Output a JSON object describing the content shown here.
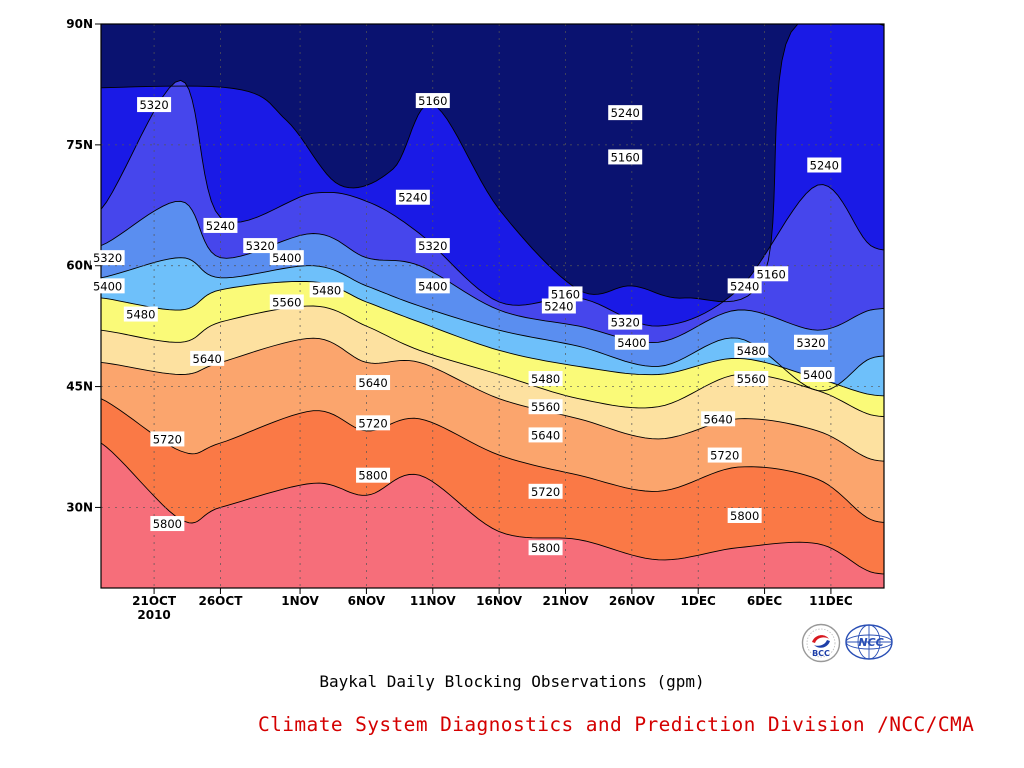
{
  "chart_data": {
    "type": "contour",
    "xlabel": "",
    "ylabel": "",
    "x_ticks": [
      "21OCT",
      "26OCT",
      "1NOV",
      "6NOV",
      "11NOV",
      "16NOV",
      "21NOV",
      "26NOV",
      "1DEC",
      "6DEC",
      "11DEC"
    ],
    "x_tick_year": "2010",
    "x_tick_dates": [
      "2010-10-21",
      "2010-10-26",
      "2010-11-01",
      "2010-11-06",
      "2010-11-11",
      "2010-11-16",
      "2010-11-21",
      "2010-11-26",
      "2010-12-01",
      "2010-12-06",
      "2010-12-11"
    ],
    "xlim": [
      "2010-10-17",
      "2010-12-15"
    ],
    "y_ticks": [
      "30N",
      "45N",
      "60N",
      "75N",
      "90N"
    ],
    "y_values": [
      30,
      45,
      60,
      75,
      90
    ],
    "ylim": [
      20,
      90
    ],
    "grid": true,
    "levels": [
      5160,
      5240,
      5320,
      5400,
      5480,
      5560,
      5640,
      5720,
      5800
    ],
    "fill_colors": [
      "#0a1270",
      "#1a1ae6",
      "#4646ec",
      "#5a8ef0",
      "#6ec0fa",
      "#fafa78",
      "#fde1a0",
      "#fba56d",
      "#fa7946",
      "#f66e7a"
    ],
    "contour_lines": [
      {
        "level": 5800,
        "days": [
          0,
          6,
          9,
          16,
          20,
          24,
          30,
          36,
          42,
          48,
          54,
          58
        ],
        "lat": [
          38,
          28.5,
          30,
          33,
          31.5,
          34,
          27,
          26,
          23.5,
          25,
          25.5,
          22
        ]
      },
      {
        "level": 5720,
        "days": [
          0,
          6,
          9,
          16,
          20,
          24,
          30,
          36,
          42,
          48,
          54,
          58
        ],
        "lat": [
          43.5,
          37,
          38,
          42,
          39.5,
          41,
          36.5,
          34,
          32,
          35,
          33.5,
          28.5
        ]
      },
      {
        "level": 5640,
        "days": [
          0,
          6,
          9,
          16,
          20,
          24,
          30,
          36,
          42,
          48,
          54,
          58
        ],
        "lat": [
          48,
          46.5,
          48,
          51,
          48,
          48,
          43.5,
          41,
          38.5,
          41,
          39.5,
          36
        ]
      },
      {
        "level": 5560,
        "days": [
          0,
          6,
          9,
          16,
          20,
          24,
          30,
          36,
          42,
          48,
          54,
          58
        ],
        "lat": [
          52,
          50.5,
          53,
          55,
          52.5,
          49.5,
          46.5,
          43.5,
          42.5,
          46.5,
          44.5,
          41.5
        ]
      },
      {
        "level": 5480,
        "days": [
          0,
          6,
          9,
          16,
          20,
          24,
          30,
          36,
          42,
          48,
          54,
          58
        ],
        "lat": [
          56,
          54.5,
          57,
          58,
          55.5,
          53,
          49.5,
          47.5,
          46.5,
          48.5,
          46,
          44
        ]
      },
      {
        "level": 5400,
        "days": [
          0,
          6,
          9,
          16,
          20,
          24,
          30,
          36,
          42,
          48,
          54,
          58
        ],
        "lat": [
          58.5,
          61,
          58.5,
          60,
          57.5,
          55,
          52,
          50,
          47.5,
          51,
          44.5,
          48.5
        ]
      },
      {
        "level": 5320,
        "days": [
          0,
          6,
          9,
          16,
          20,
          24,
          30,
          36,
          42,
          48,
          54,
          58
        ],
        "lat": [
          62.5,
          68,
          61,
          64,
          61,
          60,
          54.5,
          52.5,
          50.5,
          54.5,
          52,
          54.5
        ]
      },
      {
        "level": 5240,
        "days": [
          0,
          6,
          9,
          16,
          20,
          24,
          30,
          36,
          42,
          48,
          54,
          58
        ],
        "lat": [
          67,
          83,
          66,
          69,
          68,
          64,
          55.5,
          56,
          52.5,
          57,
          70,
          62.5
        ]
      },
      {
        "level": 5160,
        "days": [
          10,
          14,
          18,
          22,
          25,
          30,
          36,
          40,
          44,
          50,
          52
        ],
        "lat": [
          82,
          78,
          70,
          72,
          80,
          67,
          57,
          57.5,
          56,
          59,
          89
        ]
      }
    ],
    "labels": [
      {
        "text": "5320",
        "day": 4,
        "lat": 80
      },
      {
        "text": "5240",
        "day": 9,
        "lat": 65
      },
      {
        "text": "5320",
        "day": 12,
        "lat": 62.5
      },
      {
        "text": "5400",
        "day": 14,
        "lat": 61
      },
      {
        "text": "5320",
        "day": 0.5,
        "lat": 61
      },
      {
        "text": "5400",
        "day": 0.5,
        "lat": 57.5
      },
      {
        "text": "5480",
        "day": 3,
        "lat": 54
      },
      {
        "text": "5560",
        "day": 14,
        "lat": 55.5
      },
      {
        "text": "5480",
        "day": 17,
        "lat": 57
      },
      {
        "text": "5640",
        "day": 8,
        "lat": 48.5
      },
      {
        "text": "5160",
        "day": 25,
        "lat": 80.5
      },
      {
        "text": "5240",
        "day": 23.5,
        "lat": 68.5
      },
      {
        "text": "5320",
        "day": 25,
        "lat": 62.5
      },
      {
        "text": "5400",
        "day": 25,
        "lat": 57.5
      },
      {
        "text": "5640",
        "day": 20.5,
        "lat": 45.5
      },
      {
        "text": "5720",
        "day": 20.5,
        "lat": 40.5
      },
      {
        "text": "5800",
        "day": 20.5,
        "lat": 34
      },
      {
        "text": "5720",
        "day": 5,
        "lat": 38.5
      },
      {
        "text": "5800",
        "day": 5,
        "lat": 28
      },
      {
        "text": "5160",
        "day": 35,
        "lat": 56.5
      },
      {
        "text": "5240",
        "day": 34.5,
        "lat": 55
      },
      {
        "text": "5320",
        "day": 39.5,
        "lat": 53
      },
      {
        "text": "5400",
        "day": 40,
        "lat": 50.5
      },
      {
        "text": "5480",
        "day": 33.5,
        "lat": 46
      },
      {
        "text": "5560",
        "day": 33.5,
        "lat": 42.5
      },
      {
        "text": "5640",
        "day": 33.5,
        "lat": 39
      },
      {
        "text": "5720",
        "day": 33.5,
        "lat": 32
      },
      {
        "text": "5800",
        "day": 33.5,
        "lat": 25
      },
      {
        "text": "5240",
        "day": 39.5,
        "lat": 79
      },
      {
        "text": "5160",
        "day": 39.5,
        "lat": 73.5
      },
      {
        "text": "5160",
        "day": 50.5,
        "lat": 59
      },
      {
        "text": "5240",
        "day": 48.5,
        "lat": 57.5
      },
      {
        "text": "5480",
        "day": 49,
        "lat": 49.5
      },
      {
        "text": "5560",
        "day": 49,
        "lat": 46
      },
      {
        "text": "5640",
        "day": 46.5,
        "lat": 41
      },
      {
        "text": "5720",
        "day": 47,
        "lat": 36.5
      },
      {
        "text": "5800",
        "day": 48.5,
        "lat": 29
      },
      {
        "text": "5320",
        "day": 53.5,
        "lat": 50.5
      },
      {
        "text": "5400",
        "day": 54,
        "lat": 46.5
      },
      {
        "text": "5240",
        "day": 54.5,
        "lat": 72.5
      }
    ]
  },
  "caption": "Baykal Daily Blocking Observations (gpm)",
  "credit": "Climate System Diagnostics and Prediction Division /NCC/CMA",
  "logos": [
    {
      "icon": "bcc-logo-icon",
      "text": "BCC"
    },
    {
      "icon": "ncc-logo-icon",
      "text": "NCC"
    }
  ]
}
